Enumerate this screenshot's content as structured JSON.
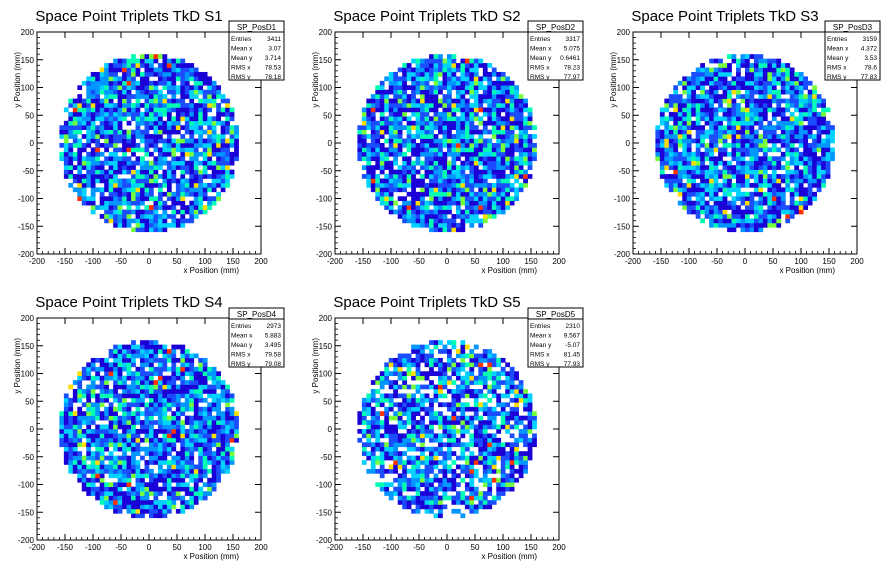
{
  "chart_data": [
    {
      "type": "heatmap",
      "title": "Space Point Triplets TkD S1",
      "xlabel": "x Position (mm)",
      "ylabel": "y Position (mm)",
      "xlim": [
        -200,
        200
      ],
      "ylim": [
        -200,
        200
      ],
      "xticks": [
        -200,
        -150,
        -100,
        -50,
        0,
        50,
        100,
        150,
        200
      ],
      "yticks": [
        -200,
        -150,
        -100,
        -50,
        0,
        50,
        100,
        150,
        200
      ],
      "radius": 160,
      "bin_width": 8,
      "stats": {
        "name": "SP_PosD1",
        "rows": [
          [
            "Entries",
            "3411"
          ],
          [
            "Mean x",
            "3.07"
          ],
          [
            "Mean y",
            "3.714"
          ],
          [
            "RMS x",
            "78.53"
          ],
          [
            "RMS y",
            "78.18"
          ]
        ]
      }
    },
    {
      "type": "heatmap",
      "title": "Space Point Triplets TkD S2",
      "xlabel": "x Position (mm)",
      "ylabel": "y Position (mm)",
      "xlim": [
        -200,
        200
      ],
      "ylim": [
        -200,
        200
      ],
      "xticks": [
        -200,
        -150,
        -100,
        -50,
        0,
        50,
        100,
        150,
        200
      ],
      "yticks": [
        -200,
        -150,
        -100,
        -50,
        0,
        50,
        100,
        150,
        200
      ],
      "radius": 160,
      "bin_width": 8,
      "stats": {
        "name": "SP_PosD2",
        "rows": [
          [
            "Entries",
            "3317"
          ],
          [
            "Mean x",
            "5.075"
          ],
          [
            "Mean y",
            "0.6461"
          ],
          [
            "RMS x",
            "78.23"
          ],
          [
            "RMS y",
            "77.97"
          ]
        ]
      }
    },
    {
      "type": "heatmap",
      "title": "Space Point Triplets TkD S3",
      "xlabel": "x Position (mm)",
      "ylabel": "y Position (mm)",
      "xlim": [
        -200,
        200
      ],
      "ylim": [
        -200,
        200
      ],
      "xticks": [
        -200,
        -150,
        -100,
        -50,
        0,
        50,
        100,
        150,
        200
      ],
      "yticks": [
        -200,
        -150,
        -100,
        -50,
        0,
        50,
        100,
        150,
        200
      ],
      "radius": 160,
      "bin_width": 8,
      "stats": {
        "name": "SP_PosD3",
        "rows": [
          [
            "Entries",
            "3159"
          ],
          [
            "Mean x",
            "4.372"
          ],
          [
            "Mean y",
            "3.53"
          ],
          [
            "RMS x",
            "78.6"
          ],
          [
            "RMS y",
            "77.83"
          ]
        ]
      }
    },
    {
      "type": "heatmap",
      "title": "Space Point Triplets TkD S4",
      "xlabel": "x Position (mm)",
      "ylabel": "y Position (mm)",
      "xlim": [
        -200,
        200
      ],
      "ylim": [
        -200,
        200
      ],
      "xticks": [
        -200,
        -150,
        -100,
        -50,
        0,
        50,
        100,
        150,
        200
      ],
      "yticks": [
        -200,
        -150,
        -100,
        -50,
        0,
        50,
        100,
        150,
        200
      ],
      "radius": 160,
      "bin_width": 8,
      "stats": {
        "name": "SP_PosD4",
        "rows": [
          [
            "Entries",
            "2973"
          ],
          [
            "Mean x",
            "5.883"
          ],
          [
            "Mean y",
            "3.495"
          ],
          [
            "RMS x",
            "79.58"
          ],
          [
            "RMS y",
            "79.08"
          ]
        ]
      }
    },
    {
      "type": "heatmap",
      "title": "Space Point Triplets TkD S5",
      "xlabel": "x Position (mm)",
      "ylabel": "y Position (mm)",
      "xlim": [
        -200,
        200
      ],
      "ylim": [
        -200,
        200
      ],
      "xticks": [
        -200,
        -150,
        -100,
        -50,
        0,
        50,
        100,
        150,
        200
      ],
      "yticks": [
        -200,
        -150,
        -100,
        -50,
        0,
        50,
        100,
        150,
        200
      ],
      "radius": 160,
      "bin_width": 8,
      "stats": {
        "name": "SP_PosD5",
        "rows": [
          [
            "Entries",
            "2310"
          ],
          [
            "Mean x",
            "9.567"
          ],
          [
            "Mean y",
            "-5.07"
          ],
          [
            "RMS x",
            "81.45"
          ],
          [
            "RMS y",
            "77.93"
          ]
        ]
      }
    }
  ],
  "colors": {
    "palette": [
      "#1a00d6",
      "#1b4dff",
      "#0096ff",
      "#00d2ff",
      "#00ffb4",
      "#78ff3c",
      "#ffdc00",
      "#ff3200"
    ],
    "axis": "#000000",
    "background": "#ffffff"
  }
}
